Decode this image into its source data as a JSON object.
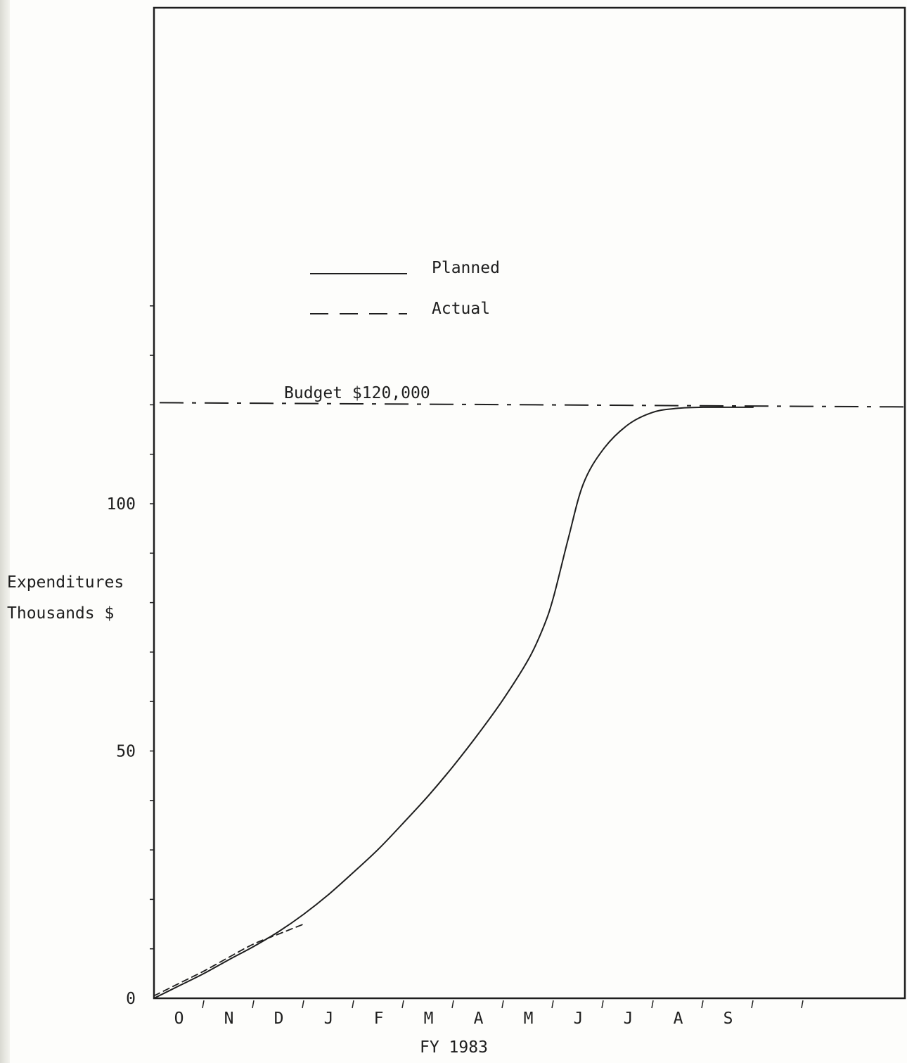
{
  "chart_data": {
    "type": "line",
    "ylabel_lines": [
      "Expenditures",
      "Thousands $"
    ],
    "xlabel": "FY 1983",
    "categories": [
      "O",
      "N",
      "D",
      "J",
      "F",
      "M",
      "A",
      "M",
      "J",
      "J",
      "A",
      "S"
    ],
    "ylim": [
      0,
      150
    ],
    "y_ticks": [
      0,
      50,
      100
    ],
    "y_tick_labels": [
      "0",
      "50",
      "100"
    ],
    "grid": false,
    "legend_position": "upper-left",
    "budget": {
      "label": "Budget $120,000",
      "value": 120
    },
    "series": [
      {
        "name": "Planned",
        "style": "solid",
        "x": [
          0,
          0.5,
          1,
          1.5,
          2,
          2.5,
          3,
          3.5,
          4,
          4.5,
          5,
          5.5,
          6,
          6.5,
          7,
          7.5,
          7.8,
          8,
          8.3,
          8.6,
          9,
          9.5,
          10,
          10.5,
          11,
          11.5,
          12
        ],
        "values": [
          0,
          2.5,
          5,
          7.8,
          10.5,
          13.5,
          17,
          21,
          25.5,
          30.2,
          35.5,
          41,
          47,
          53.5,
          60.5,
          68.5,
          75,
          81,
          93,
          104,
          111,
          116,
          118.5,
          119.3,
          119.5,
          119.5,
          119.5
        ]
      },
      {
        "name": "Actual",
        "style": "dashed",
        "x": [
          0,
          0.5,
          1,
          1.5,
          2,
          2.5,
          3
        ],
        "values": [
          0.5,
          3,
          5.5,
          8.3,
          11,
          13,
          15
        ]
      }
    ]
  }
}
